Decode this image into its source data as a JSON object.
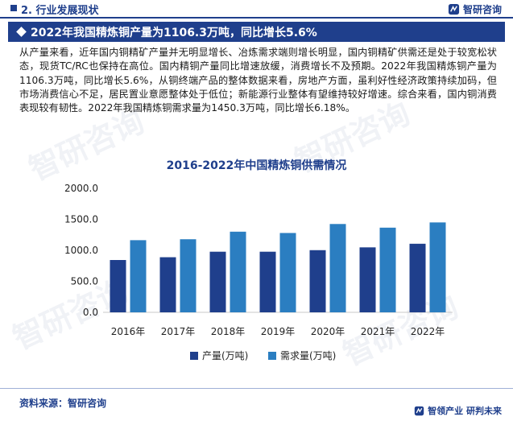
{
  "header": {
    "section_title": "2. 行业发展现状",
    "logo_text": "智研咨询"
  },
  "headline": "2022年我国精炼铜产量为1106.3万吨，同比增长5.6%",
  "paragraph": "从产量来看，近年国内铜精矿产量并无明显增长、冶炼需求端则增长明显，国内铜精矿供需还是处于较宽松状态，现货TC/RC也保持在高位。国内精铜产量同比增速放缓，消费增长不及预期。2022年我国精炼铜产量为1106.3万吨，同比增长5.6%，从铜终端产品的整体数据来看，房地产方面，虽利好性经济政策持续加码，但市场消费信心不足，居民置业意愿整体处于低位；新能源行业整体有望维持较好增速。综合来看，国内铜消费表现较有韧性。2022年我国精炼铜需求量为1450.3万吨，同比增长6.18%。",
  "chart_data": {
    "type": "bar",
    "title": "2016-2022年中国精炼铜供需情况",
    "categories": [
      "2016年",
      "2017年",
      "2018年",
      "2019年",
      "2020年",
      "2021年",
      "2022年"
    ],
    "series": [
      {
        "name": "产量(万吨)",
        "color": "#1f3f8c",
        "values": [
          844,
          889,
          978,
          978,
          1003,
          1048,
          1106.3
        ]
      },
      {
        "name": "需求量(万吨)",
        "color": "#2b7ec1",
        "values": [
          1164,
          1179,
          1301,
          1280,
          1425,
          1366,
          1450.3
        ]
      }
    ],
    "ylim": [
      0,
      2000
    ],
    "yticks": [
      "0.0",
      "500.0",
      "1000.0",
      "1500.0",
      "2000.0"
    ],
    "grid": false,
    "legend": "bottom"
  },
  "footer": {
    "source": "资料来源：智研咨询",
    "slogan": "智领产业  研判未来"
  },
  "watermark_text": "智研咨询"
}
